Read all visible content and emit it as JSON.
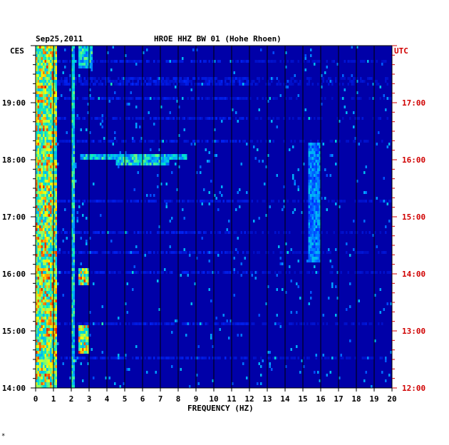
{
  "header": {
    "date": "Sep25,2011",
    "station": "HROE HHZ BW 01 (Hohe Rhoen)"
  },
  "left_zone": "CES",
  "right_zone": "UTC",
  "xlabel": "FREQUENCY (HZ)",
  "footnote": "*",
  "colors": {
    "background": "#0000a8",
    "grid": "#000000",
    "right_axis": "#d00000"
  },
  "chart_data": {
    "type": "heatmap",
    "title": "HROE HHZ BW 01 (Hohe Rhoen)",
    "date": "Sep25,2011",
    "xlabel": "FREQUENCY (HZ)",
    "xlim": [
      0,
      20
    ],
    "x_ticks": [
      "0",
      "1",
      "2",
      "3",
      "4",
      "5",
      "6",
      "7",
      "8",
      "9",
      "10",
      "11",
      "12",
      "13",
      "14",
      "15",
      "16",
      "17",
      "18",
      "19",
      "20"
    ],
    "left_axis": {
      "zone": "CES",
      "ticks": [
        {
          "hours": 14,
          "label": "14:00"
        },
        {
          "hours": 15,
          "label": "15:00"
        },
        {
          "hours": 16,
          "label": "16:00"
        },
        {
          "hours": 17,
          "label": "17:00"
        },
        {
          "hours": 18,
          "label": "18:00"
        },
        {
          "hours": 19,
          "label": "19:00"
        }
      ]
    },
    "right_axis": {
      "zone": "UTC",
      "ticks": [
        {
          "hours": 12,
          "label": "12:00"
        },
        {
          "hours": 13,
          "label": "13:00"
        },
        {
          "hours": 14,
          "label": "14:00"
        },
        {
          "hours": 15,
          "label": "15:00"
        },
        {
          "hours": 16,
          "label": "16:00"
        },
        {
          "hours": 17,
          "label": "17:00"
        }
      ]
    },
    "time_range_ces": [
      14.0,
      20.0
    ],
    "grid": true,
    "features": [
      {
        "freq_hz": [
          0.0,
          1.2
        ],
        "time_ces": [
          14.0,
          20.0
        ],
        "intensity": "high"
      },
      {
        "freq_hz": [
          2.0,
          2.2
        ],
        "time_ces": [
          14.0,
          20.0
        ],
        "intensity": "medium"
      },
      {
        "freq_hz": [
          2.4,
          3.0
        ],
        "time_ces": [
          14.6,
          15.1
        ],
        "intensity": "high"
      },
      {
        "freq_hz": [
          2.4,
          3.0
        ],
        "time_ces": [
          15.8,
          16.1
        ],
        "intensity": "high"
      },
      {
        "freq_hz": [
          2.4,
          3.2
        ],
        "time_ces": [
          19.6,
          20.0
        ],
        "intensity": "medium"
      },
      {
        "freq_hz": [
          2.5,
          8.5
        ],
        "time_ces": [
          18.0,
          18.1
        ],
        "intensity": "medium"
      },
      {
        "freq_hz": [
          4.5,
          7.5
        ],
        "time_ces": [
          17.9,
          18.0
        ],
        "intensity": "medium"
      },
      {
        "freq_hz": [
          15.3,
          16.0
        ],
        "time_ces": [
          16.2,
          18.3
        ],
        "intensity": "low"
      }
    ]
  }
}
